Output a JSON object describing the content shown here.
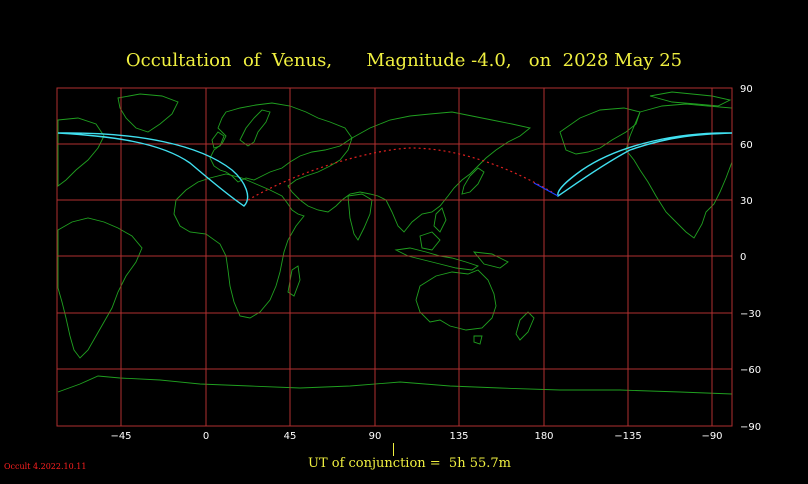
{
  "title": "Occultation  of  Venus,      Magnitude -4.0,   on  2028 May 25",
  "x_ticks": [
    "−45",
    "0",
    "45",
    "90",
    "135",
    "180",
    "−135",
    "−90"
  ],
  "y_ticks": [
    "90",
    "60",
    "30",
    "0",
    "−30",
    "−60",
    "−90"
  ],
  "conjunction_text": "UT of conjunction =  5h 55.7m",
  "version": "Occult 4.2022.10.11",
  "colors": {
    "background": "#000000",
    "grid": "#b03030",
    "coast": "#20a020",
    "track": "#40e0f0",
    "night_track": "#e02020",
    "title": "#f0f040"
  }
}
